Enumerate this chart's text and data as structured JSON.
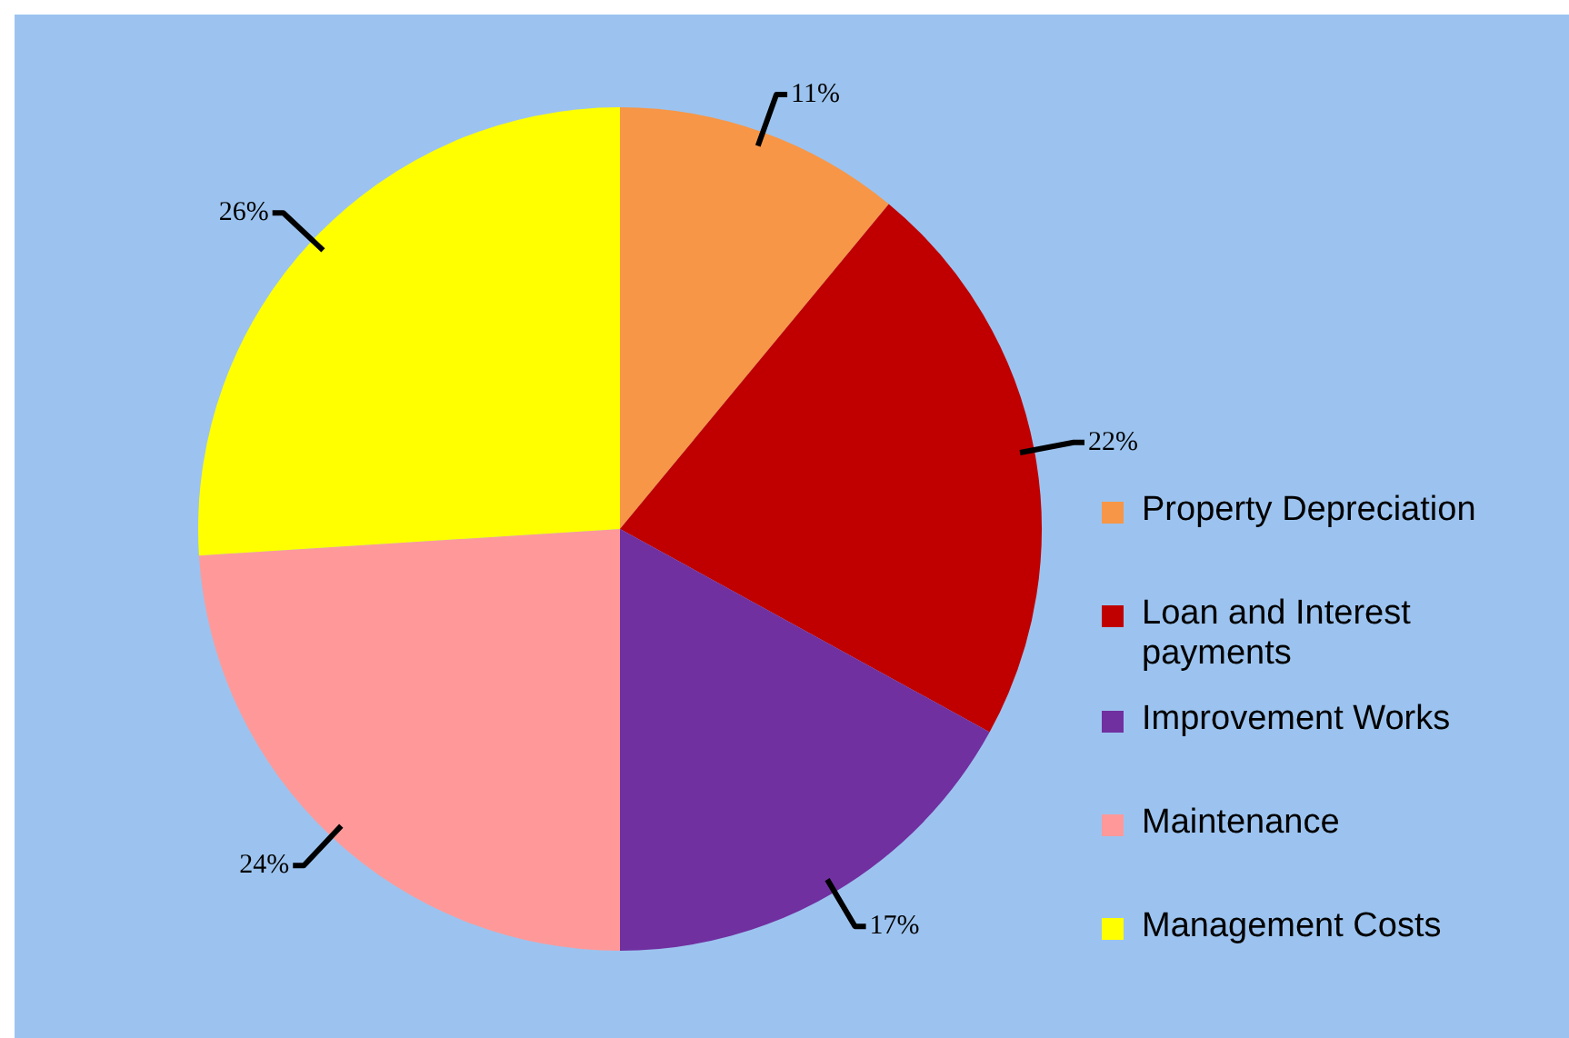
{
  "chart_data": {
    "type": "pie",
    "categories": [
      "Property Depreciation",
      "Loan and Interest payments",
      "Improvement Works",
      "Maintenance",
      "Management Costs"
    ],
    "values": [
      11,
      22,
      17,
      24,
      26
    ],
    "colors": [
      "#f79646",
      "#c00000",
      "#7030a0",
      "#ff9999",
      "#ffff00"
    ],
    "value_labels": [
      "11%",
      "22%",
      "17%",
      "24%",
      "26%"
    ],
    "legend": "right"
  }
}
